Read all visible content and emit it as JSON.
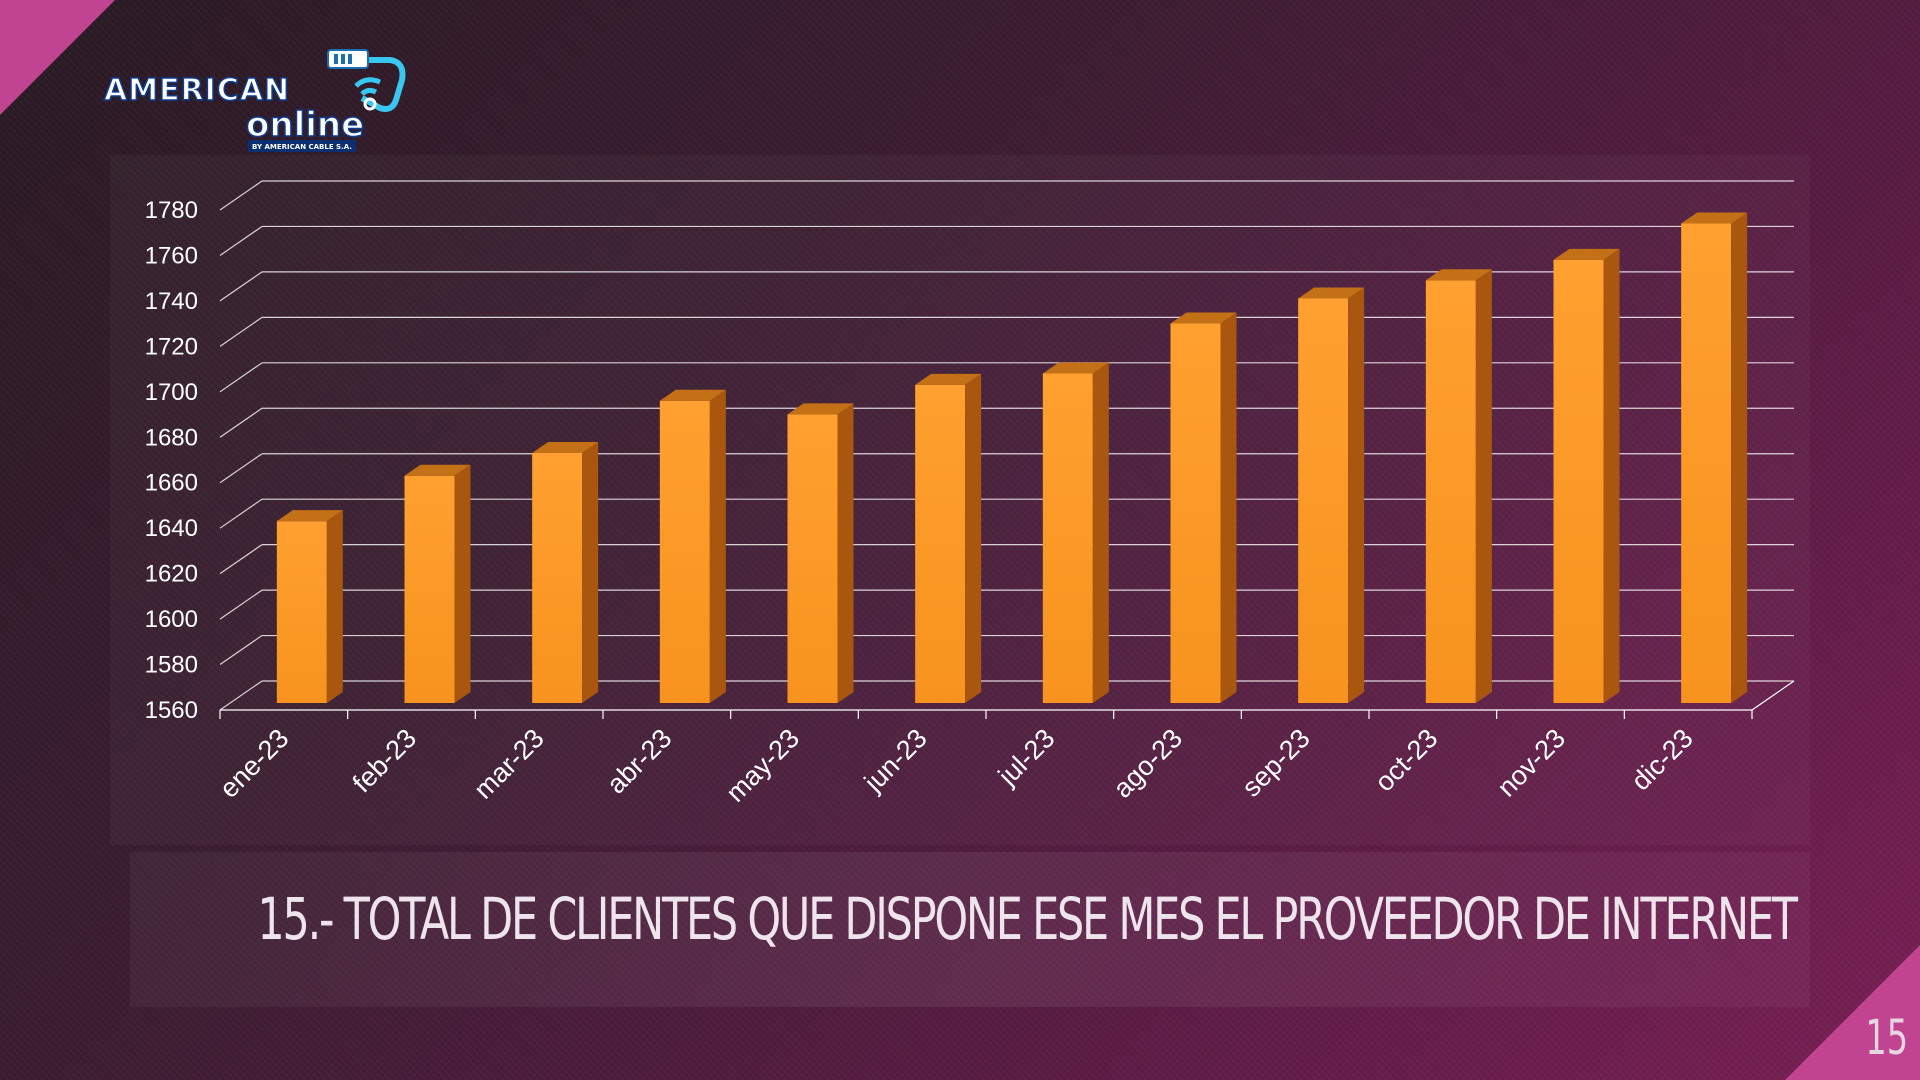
{
  "brand": {
    "line1": "AMERICAN",
    "line2": "online",
    "tagline": "BY AMERICAN CABLE S.A."
  },
  "slide": {
    "title": "15.- TOTAL DE CLIENTES QUE DISPONE ESE MES EL PROVEEDOR DE INTERNET",
    "page_number": "15"
  },
  "colors": {
    "bar_front": "#f7931e",
    "bar_side": "#a9560f",
    "bar_top": "#c47016",
    "grid": "#ffffff",
    "accent": "#c0448f"
  },
  "chart_data": {
    "type": "bar",
    "style": "3d-column",
    "categories": [
      "ene-23",
      "feb-23",
      "mar-23",
      "abr-23",
      "may-23",
      "jun-23",
      "jul-23",
      "ago-23",
      "sep-23",
      "oct-23",
      "nov-23",
      "dic-23"
    ],
    "values": [
      1640,
      1660,
      1670,
      1693,
      1687,
      1700,
      1705,
      1727,
      1738,
      1746,
      1755,
      1771
    ],
    "yticks": [
      1560,
      1580,
      1600,
      1620,
      1640,
      1660,
      1680,
      1700,
      1720,
      1740,
      1760,
      1780
    ],
    "ylim": [
      1560,
      1780
    ],
    "grid": true,
    "legend": "none"
  }
}
